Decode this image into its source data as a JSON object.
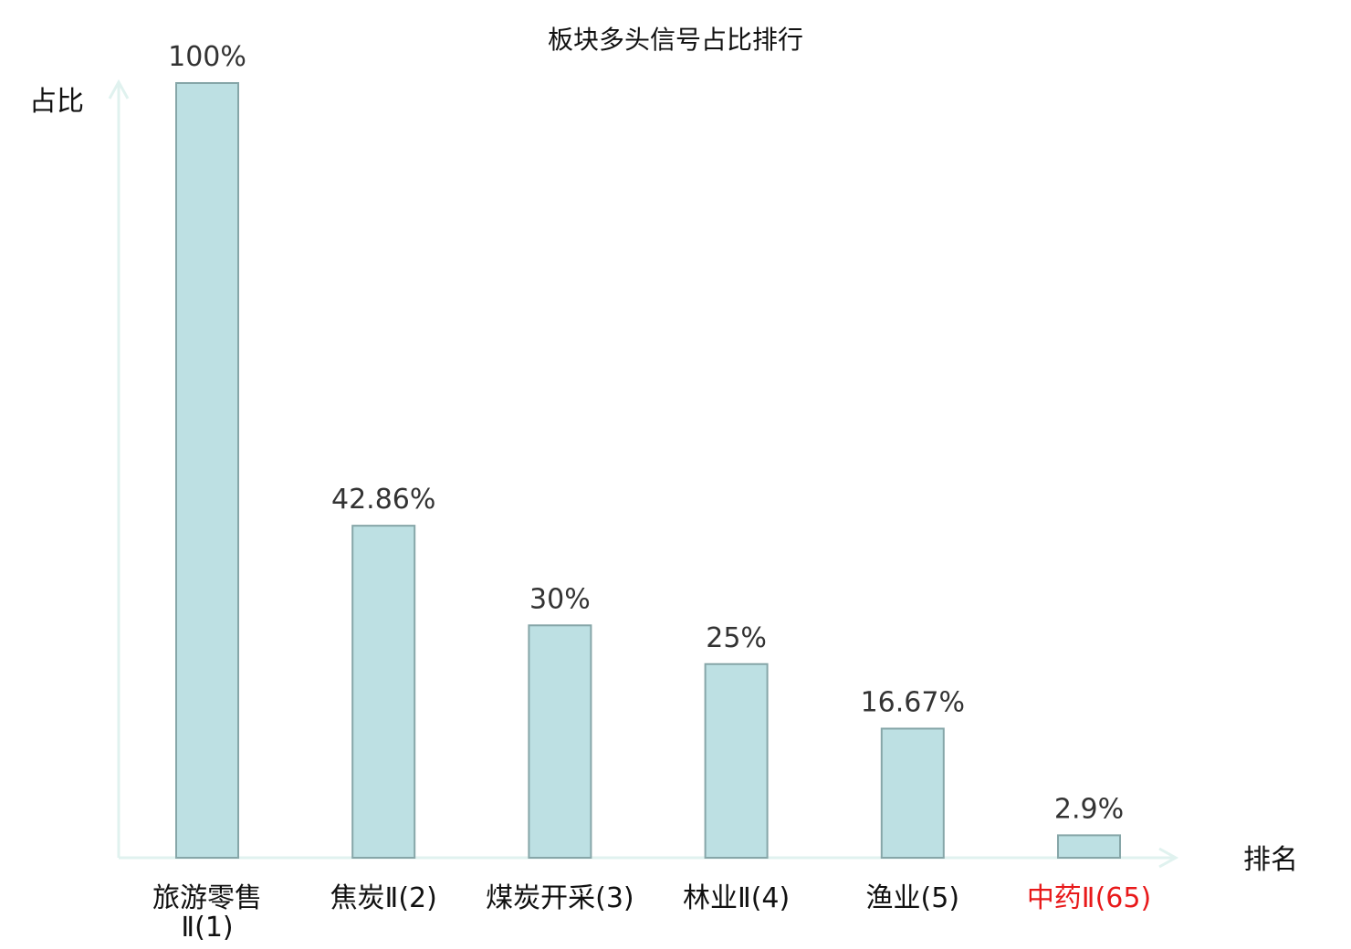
{
  "chart_data": {
    "type": "bar",
    "title": "板块多头信号占比排行",
    "ylabel": "占比",
    "xlabel": "排名",
    "ylim": [
      0,
      100
    ],
    "grid": false,
    "categories": [
      "旅游零售Ⅱ(1)",
      "焦炭Ⅱ(2)",
      "煤炭开采(3)",
      "林业Ⅱ(4)",
      "渔业(5)",
      "中药Ⅱ(65)"
    ],
    "category_lines": [
      [
        "旅游零售",
        "Ⅱ(1)"
      ],
      [
        "焦炭Ⅱ(2)"
      ],
      [
        "煤炭开采(3)"
      ],
      [
        "林业Ⅱ(4)"
      ],
      [
        "渔业(5)"
      ],
      [
        "中药Ⅱ(65)"
      ]
    ],
    "values": [
      100,
      42.86,
      30,
      25,
      16.67,
      2.9
    ],
    "value_labels": [
      "100%",
      "42.86%",
      "30%",
      "25%",
      "16.67%",
      "2.9%"
    ],
    "highlight_index": 5,
    "colors": {
      "bar_fill": "#bde0e3",
      "bar_stroke": "#86a6a8",
      "axis": "#e0f2ef",
      "highlight_label": "#e8191a",
      "label": "#111111"
    }
  }
}
